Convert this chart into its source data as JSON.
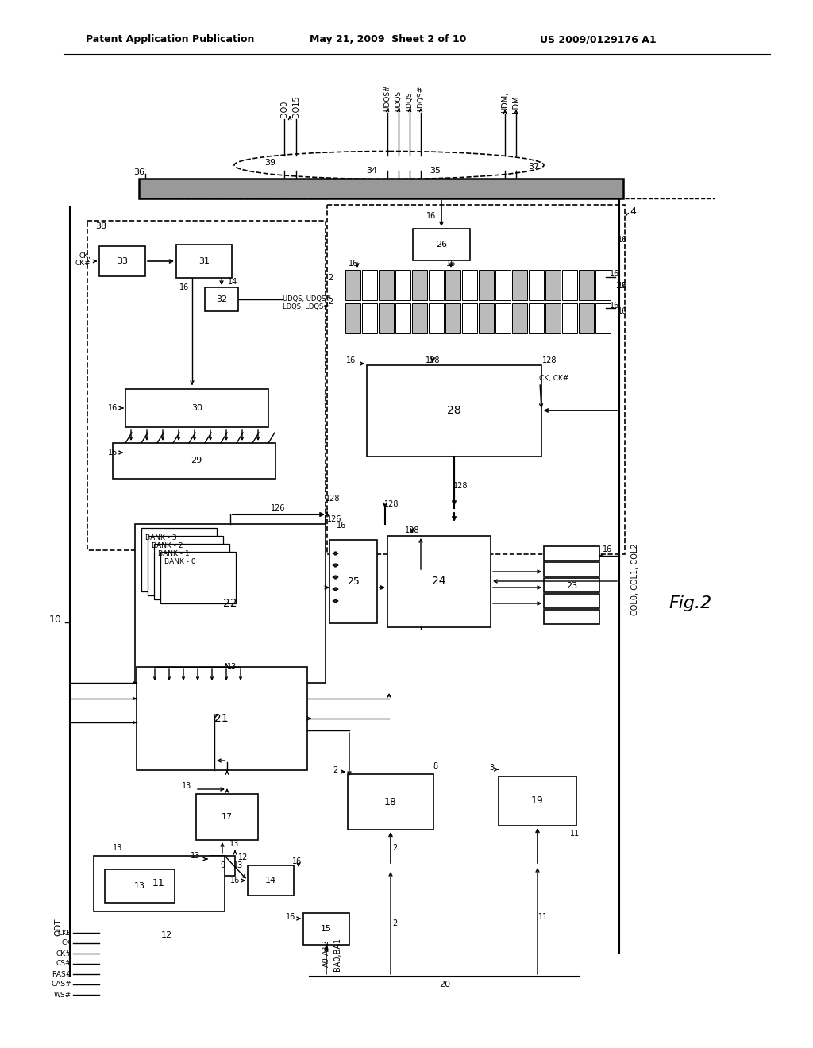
{
  "bg": "#ffffff",
  "header_left": "Patent Application Publication",
  "header_mid": "May 21, 2009  Sheet 2 of 10",
  "header_right": "US 2009/0129176 A1",
  "fig_label": "Fig.2"
}
